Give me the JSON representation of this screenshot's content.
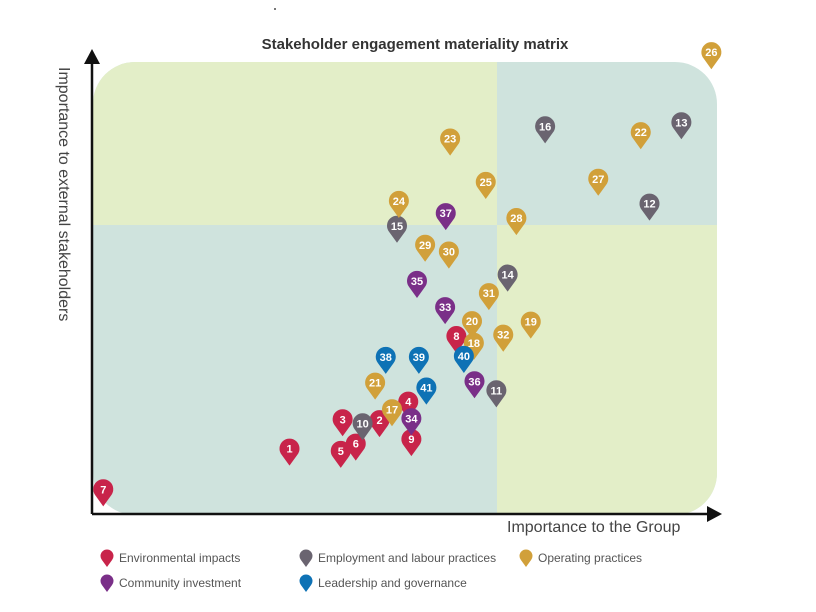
{
  "chart_data": {
    "type": "scatter",
    "title": "Stakeholder engagement materiality matrix",
    "xlabel": "Importance to the Group",
    "ylabel": "Importance to external stakeholders",
    "xlim": [
      0,
      100
    ],
    "ylim": [
      0,
      100
    ],
    "grid": false,
    "legend_position": "bottom",
    "series": [
      {
        "name": "Environmental impacts",
        "color": "#c8244a",
        "points": [
          {
            "label": "1",
            "x": 31.6,
            "y": 10.7
          },
          {
            "label": "2",
            "x": 46.0,
            "y": 17.0
          },
          {
            "label": "3",
            "x": 40.1,
            "y": 17.2
          },
          {
            "label": "4",
            "x": 50.6,
            "y": 21.1
          },
          {
            "label": "5",
            "x": 39.8,
            "y": 10.2
          },
          {
            "label": "6",
            "x": 42.2,
            "y": 11.8
          },
          {
            "label": "7",
            "x": 1.8,
            "y": 1.7
          },
          {
            "label": "8",
            "x": 58.3,
            "y": 35.6
          },
          {
            "label": "9",
            "x": 51.1,
            "y": 12.8
          }
        ]
      },
      {
        "name": "Employment and labour practices",
        "color": "#6a6470",
        "points": [
          {
            "label": "10",
            "x": 43.3,
            "y": 16.3
          },
          {
            "label": "11",
            "x": 64.7,
            "y": 23.6
          },
          {
            "label": "12",
            "x": 89.2,
            "y": 64.9
          },
          {
            "label": "13",
            "x": 94.3,
            "y": 82.9
          },
          {
            "label": "14",
            "x": 66.5,
            "y": 49.2
          },
          {
            "label": "15",
            "x": 48.8,
            "y": 60.0
          },
          {
            "label": "16",
            "x": 72.5,
            "y": 82.0
          }
        ]
      },
      {
        "name": "Operating practices",
        "color": "#d1a03a",
        "points": [
          {
            "label": "17",
            "x": 48.0,
            "y": 19.4
          },
          {
            "label": "18",
            "x": 61.1,
            "y": 34.1
          },
          {
            "label": "19",
            "x": 70.2,
            "y": 38.8
          },
          {
            "label": "20",
            "x": 60.8,
            "y": 38.9
          },
          {
            "label": "21",
            "x": 45.3,
            "y": 25.3
          },
          {
            "label": "22",
            "x": 87.8,
            "y": 80.7
          },
          {
            "label": "23",
            "x": 57.3,
            "y": 79.3
          },
          {
            "label": "24",
            "x": 49.1,
            "y": 65.5
          },
          {
            "label": "25",
            "x": 63.0,
            "y": 69.7
          },
          {
            "label": "26",
            "x": 99.1,
            "y": 98.4
          },
          {
            "label": "27",
            "x": 81.0,
            "y": 70.4
          },
          {
            "label": "28",
            "x": 67.9,
            "y": 61.7
          },
          {
            "label": "29",
            "x": 53.3,
            "y": 55.8
          },
          {
            "label": "30",
            "x": 57.1,
            "y": 54.3
          },
          {
            "label": "31",
            "x": 63.5,
            "y": 45.1
          },
          {
            "label": "32",
            "x": 65.8,
            "y": 35.9
          }
        ]
      },
      {
        "name": "Community investment",
        "color": "#7a2f88",
        "points": [
          {
            "label": "33",
            "x": 56.5,
            "y": 42.0
          },
          {
            "label": "34",
            "x": 51.1,
            "y": 17.4
          },
          {
            "label": "35",
            "x": 52.0,
            "y": 47.8
          },
          {
            "label": "36",
            "x": 61.2,
            "y": 25.6
          },
          {
            "label": "37",
            "x": 56.6,
            "y": 62.8
          }
        ]
      },
      {
        "name": "Leadership and governance",
        "color": "#0e72b5",
        "points": [
          {
            "label": "38",
            "x": 47.0,
            "y": 31.0
          },
          {
            "label": "39",
            "x": 52.3,
            "y": 31.0
          },
          {
            "label": "40",
            "x": 59.5,
            "y": 31.2
          },
          {
            "label": "41",
            "x": 53.5,
            "y": 24.2
          }
        ]
      }
    ]
  }
}
